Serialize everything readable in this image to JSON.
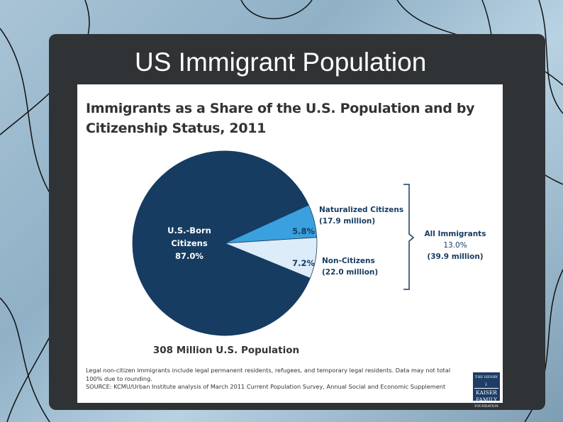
{
  "slide": {
    "title": "US Immigrant Population"
  },
  "chart_data": {
    "type": "pie",
    "title": "Immigrants as a Share of the U.S. Population and by Citizenship Status, 2011",
    "slices": [
      {
        "name": "U.S.-Born Citizens",
        "value": 87.0,
        "label": "87.0%",
        "color": "#173c61"
      },
      {
        "name": "Naturalized Citizens",
        "value": 5.8,
        "label": "5.8%",
        "color": "#3aa0de",
        "detail": "(17.9 million)"
      },
      {
        "name": "Non-Citizens",
        "value": 7.2,
        "label": "7.2%",
        "color": "#dcecf8",
        "detail": "(22.0 million)"
      }
    ],
    "inner_labels": {
      "us_born_line1": "U.S.-Born",
      "us_born_line2": "Citizens",
      "us_born_pct": "87.0%"
    },
    "bracket": {
      "label": "All Immigrants",
      "pct": "13.0%",
      "detail": "(39.9 million)"
    },
    "total_label": "308 Million U.S. Population"
  },
  "footnote": {
    "line1": "Legal non-citizen immigrants include legal permanent residents, refugees, and temporary legal residents. Data may not total 100% due to rounding.",
    "line2": "SOURCE: KCMU/Urban Institute analysis of March 2011 Current Population Survey, Annual Social and Economic Supplement"
  },
  "logo": {
    "line1": "THE HENRY J.",
    "line2": "KAISER",
    "line3": "FAMILY",
    "line4": "FOUNDATION"
  }
}
